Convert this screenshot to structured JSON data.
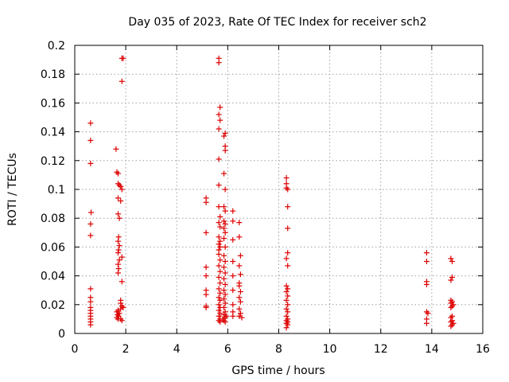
{
  "chart_data": {
    "type": "scatter",
    "title": "Day 035 of 2023, Rate Of TEC Index for receiver sch2",
    "xlabel": "GPS time / hours",
    "ylabel": "ROTI / TECUs",
    "xlim": [
      0,
      16
    ],
    "ylim": [
      0,
      0.2
    ],
    "xticks": [
      0,
      2,
      4,
      6,
      8,
      10,
      12,
      14,
      16
    ],
    "xtick_labels": [
      "0",
      "2",
      "4",
      "6",
      "8",
      "10",
      "12",
      "14",
      "16"
    ],
    "yticks": [
      0,
      0.02,
      0.04,
      0.06,
      0.08,
      0.1,
      0.12,
      0.14,
      0.16,
      0.18,
      0.2
    ],
    "ytick_labels": [
      "0",
      "0.02",
      "0.04",
      "0.06",
      "0.08",
      "0.1",
      "0.12",
      "0.14",
      "0.16",
      "0.18",
      "0.2"
    ],
    "grid": true,
    "marker": "+",
    "color": "#dd0000",
    "points": [
      [
        0.62,
        0.146
      ],
      [
        0.62,
        0.134
      ],
      [
        0.62,
        0.118
      ],
      [
        0.64,
        0.084
      ],
      [
        0.62,
        0.076
      ],
      [
        0.62,
        0.068
      ],
      [
        0.62,
        0.031
      ],
      [
        0.62,
        0.025
      ],
      [
        0.62,
        0.022
      ],
      [
        0.62,
        0.018
      ],
      [
        0.62,
        0.016
      ],
      [
        0.62,
        0.014
      ],
      [
        0.62,
        0.012
      ],
      [
        0.62,
        0.01
      ],
      [
        0.62,
        0.008
      ],
      [
        0.62,
        0.006
      ],
      [
        1.62,
        0.128
      ],
      [
        1.65,
        0.112
      ],
      [
        1.7,
        0.111
      ],
      [
        1.7,
        0.104
      ],
      [
        1.75,
        0.103
      ],
      [
        1.8,
        0.102
      ],
      [
        1.85,
        0.1
      ],
      [
        1.7,
        0.094
      ],
      [
        1.8,
        0.092
      ],
      [
        1.7,
        0.083
      ],
      [
        1.75,
        0.08
      ],
      [
        1.72,
        0.067
      ],
      [
        1.7,
        0.064
      ],
      [
        1.75,
        0.061
      ],
      [
        1.72,
        0.058
      ],
      [
        1.7,
        0.056
      ],
      [
        1.85,
        0.053
      ],
      [
        1.75,
        0.051
      ],
      [
        1.7,
        0.048
      ],
      [
        1.72,
        0.045
      ],
      [
        1.7,
        0.042
      ],
      [
        1.85,
        0.036
      ],
      [
        1.8,
        0.023
      ],
      [
        1.8,
        0.021
      ],
      [
        1.85,
        0.019
      ],
      [
        1.8,
        0.017
      ],
      [
        1.7,
        0.016
      ],
      [
        1.65,
        0.015
      ],
      [
        1.75,
        0.014
      ],
      [
        1.68,
        0.013
      ],
      [
        1.72,
        0.012
      ],
      [
        1.65,
        0.011
      ],
      [
        1.8,
        0.01
      ],
      [
        1.85,
        0.009
      ],
      [
        1.85,
        0.191
      ],
      [
        1.9,
        0.191
      ],
      [
        1.85,
        0.175
      ],
      [
        1.7,
        0.01
      ],
      [
        1.9,
        0.018
      ],
      [
        5.15,
        0.094
      ],
      [
        5.15,
        0.091
      ],
      [
        5.15,
        0.07
      ],
      [
        5.15,
        0.046
      ],
      [
        5.15,
        0.04
      ],
      [
        5.15,
        0.03
      ],
      [
        5.15,
        0.027
      ],
      [
        5.15,
        0.019
      ],
      [
        5.15,
        0.018
      ],
      [
        5.65,
        0.191
      ],
      [
        5.65,
        0.188
      ],
      [
        5.7,
        0.157
      ],
      [
        5.65,
        0.152
      ],
      [
        5.7,
        0.148
      ],
      [
        5.65,
        0.142
      ],
      [
        5.65,
        0.121
      ],
      [
        5.65,
        0.103
      ],
      [
        5.65,
        0.088
      ],
      [
        5.7,
        0.081
      ],
      [
        5.65,
        0.077
      ],
      [
        5.7,
        0.074
      ],
      [
        5.65,
        0.067
      ],
      [
        5.7,
        0.064
      ],
      [
        5.65,
        0.062
      ],
      [
        5.7,
        0.06
      ],
      [
        5.65,
        0.058
      ],
      [
        5.65,
        0.055
      ],
      [
        5.7,
        0.051
      ],
      [
        5.65,
        0.047
      ],
      [
        5.7,
        0.043
      ],
      [
        5.65,
        0.039
      ],
      [
        5.7,
        0.035
      ],
      [
        5.65,
        0.031
      ],
      [
        5.7,
        0.028
      ],
      [
        5.65,
        0.025
      ],
      [
        5.7,
        0.023
      ],
      [
        5.65,
        0.02
      ],
      [
        5.7,
        0.018
      ],
      [
        5.65,
        0.016
      ],
      [
        5.7,
        0.014
      ],
      [
        5.65,
        0.012
      ],
      [
        5.7,
        0.01
      ],
      [
        5.65,
        0.009
      ],
      [
        5.7,
        0.008
      ],
      [
        5.9,
        0.139
      ],
      [
        5.85,
        0.137
      ],
      [
        5.9,
        0.13
      ],
      [
        5.9,
        0.127
      ],
      [
        5.85,
        0.111
      ],
      [
        5.9,
        0.1
      ],
      [
        5.85,
        0.088
      ],
      [
        5.9,
        0.085
      ],
      [
        5.85,
        0.078
      ],
      [
        5.9,
        0.076
      ],
      [
        5.85,
        0.073
      ],
      [
        5.9,
        0.07
      ],
      [
        5.85,
        0.066
      ],
      [
        5.9,
        0.06
      ],
      [
        5.85,
        0.054
      ],
      [
        5.9,
        0.05
      ],
      [
        5.85,
        0.046
      ],
      [
        5.9,
        0.042
      ],
      [
        5.85,
        0.038
      ],
      [
        5.9,
        0.034
      ],
      [
        5.85,
        0.03
      ],
      [
        5.9,
        0.027
      ],
      [
        5.85,
        0.024
      ],
      [
        5.9,
        0.021
      ],
      [
        5.85,
        0.018
      ],
      [
        5.9,
        0.015
      ],
      [
        5.85,
        0.013
      ],
      [
        5.9,
        0.011
      ],
      [
        5.85,
        0.009
      ],
      [
        5.9,
        0.008
      ],
      [
        5.8,
        0.01
      ],
      [
        5.95,
        0.012
      ],
      [
        6.2,
        0.085
      ],
      [
        6.2,
        0.078
      ],
      [
        6.2,
        0.065
      ],
      [
        6.2,
        0.05
      ],
      [
        6.2,
        0.04
      ],
      [
        6.2,
        0.03
      ],
      [
        6.2,
        0.02
      ],
      [
        6.2,
        0.015
      ],
      [
        6.2,
        0.012
      ],
      [
        6.45,
        0.077
      ],
      [
        6.45,
        0.067
      ],
      [
        6.5,
        0.054
      ],
      [
        6.45,
        0.047
      ],
      [
        6.5,
        0.041
      ],
      [
        6.45,
        0.035
      ],
      [
        6.45,
        0.033
      ],
      [
        6.5,
        0.029
      ],
      [
        6.45,
        0.025
      ],
      [
        6.5,
        0.022
      ],
      [
        6.45,
        0.017
      ],
      [
        6.5,
        0.014
      ],
      [
        6.45,
        0.012
      ],
      [
        6.55,
        0.011
      ],
      [
        8.3,
        0.108
      ],
      [
        8.3,
        0.104
      ],
      [
        8.3,
        0.101
      ],
      [
        8.35,
        0.1
      ],
      [
        8.35,
        0.088
      ],
      [
        8.35,
        0.073
      ],
      [
        8.35,
        0.056
      ],
      [
        8.3,
        0.052
      ],
      [
        8.35,
        0.047
      ],
      [
        8.3,
        0.033
      ],
      [
        8.35,
        0.031
      ],
      [
        8.3,
        0.029
      ],
      [
        8.35,
        0.026
      ],
      [
        8.3,
        0.023
      ],
      [
        8.35,
        0.02
      ],
      [
        8.3,
        0.017
      ],
      [
        8.35,
        0.015
      ],
      [
        8.3,
        0.012
      ],
      [
        8.35,
        0.01
      ],
      [
        8.3,
        0.009
      ],
      [
        8.35,
        0.008
      ],
      [
        8.3,
        0.007
      ],
      [
        8.35,
        0.006
      ],
      [
        8.3,
        0.004
      ],
      [
        13.8,
        0.056
      ],
      [
        13.8,
        0.05
      ],
      [
        13.8,
        0.036
      ],
      [
        13.8,
        0.034
      ],
      [
        13.8,
        0.015
      ],
      [
        13.85,
        0.014
      ],
      [
        13.8,
        0.01
      ],
      [
        13.8,
        0.007
      ],
      [
        14.75,
        0.052
      ],
      [
        14.8,
        0.05
      ],
      [
        14.8,
        0.039
      ],
      [
        14.75,
        0.037
      ],
      [
        14.75,
        0.023
      ],
      [
        14.8,
        0.022
      ],
      [
        14.75,
        0.021
      ],
      [
        14.85,
        0.02
      ],
      [
        14.8,
        0.019
      ],
      [
        14.75,
        0.018
      ],
      [
        14.8,
        0.012
      ],
      [
        14.75,
        0.011
      ],
      [
        14.8,
        0.009
      ],
      [
        14.75,
        0.008
      ],
      [
        14.85,
        0.007
      ],
      [
        14.8,
        0.006
      ],
      [
        14.75,
        0.005
      ]
    ]
  }
}
